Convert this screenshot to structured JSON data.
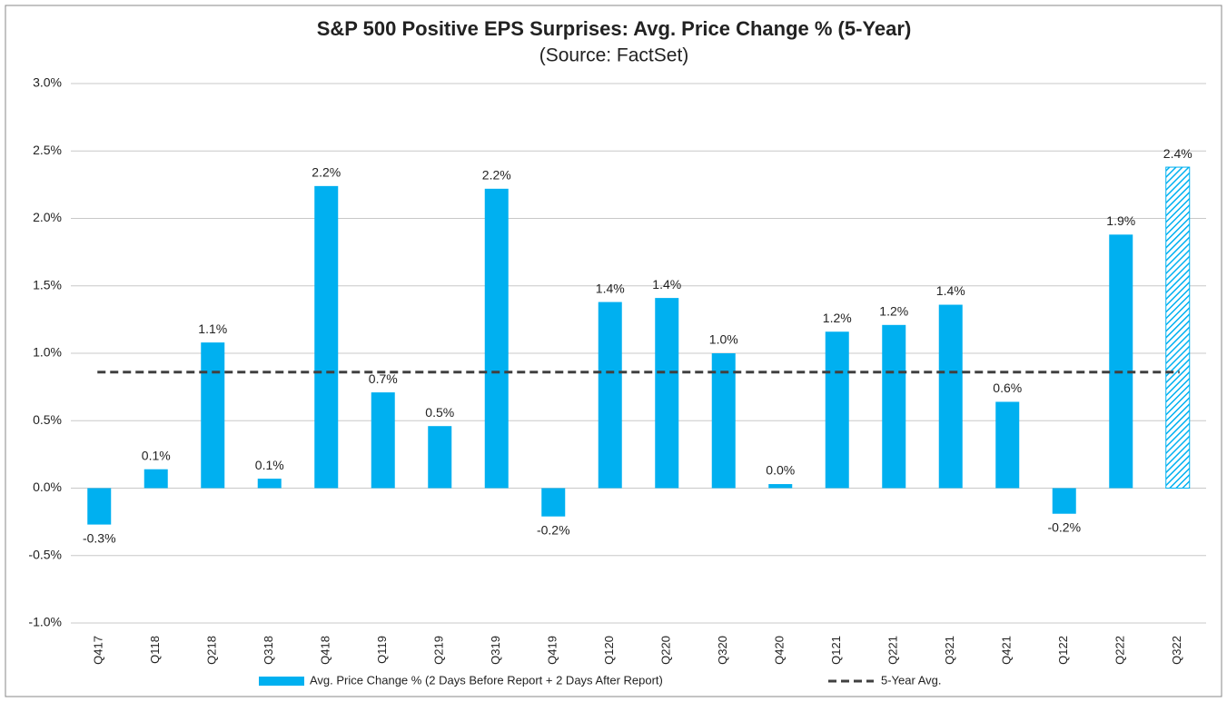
{
  "chart_data": {
    "type": "bar",
    "title": "S&P 500 Positive EPS Surprises: Avg. Price Change % (5-Year)",
    "subtitle": "(Source: FactSet)",
    "categories": [
      "Q417",
      "Q118",
      "Q218",
      "Q318",
      "Q418",
      "Q119",
      "Q219",
      "Q319",
      "Q419",
      "Q120",
      "Q220",
      "Q320",
      "Q420",
      "Q121",
      "Q221",
      "Q321",
      "Q421",
      "Q122",
      "Q222",
      "Q322"
    ],
    "series": [
      {
        "name": "Avg. Price Change % (2 Days Before Report + 2 Days After Report)",
        "color": "#00b0f0",
        "values": [
          -0.27,
          0.14,
          1.08,
          0.07,
          2.24,
          0.71,
          0.46,
          2.22,
          -0.21,
          1.38,
          1.41,
          1.0,
          0.03,
          1.16,
          1.21,
          1.36,
          0.64,
          -0.19,
          1.88,
          2.38
        ],
        "value_labels": [
          "-0.3%",
          "0.1%",
          "1.1%",
          "0.1%",
          "2.2%",
          "0.7%",
          "0.5%",
          "2.2%",
          "-0.2%",
          "1.4%",
          "1.4%",
          "1.0%",
          "0.0%",
          "1.2%",
          "1.2%",
          "1.4%",
          "0.6%",
          "-0.2%",
          "1.9%",
          "2.4%"
        ],
        "hatched_categories": [
          "Q322"
        ]
      }
    ],
    "reference_line": {
      "name": "5-Year Avg.",
      "value": 0.86,
      "color": "#404040"
    },
    "ylim": [
      -1,
      3
    ],
    "yticks": [
      {
        "value": -1,
        "label": "-1.0%"
      },
      {
        "value": -0.5,
        "label": "-0.5%"
      },
      {
        "value": 0,
        "label": "0.0%"
      },
      {
        "value": 0.5,
        "label": "0.5%"
      },
      {
        "value": 1,
        "label": "1.0%"
      },
      {
        "value": 1.5,
        "label": "1.5%"
      },
      {
        "value": 2,
        "label": "2.0%"
      },
      {
        "value": 2.5,
        "label": "2.5%"
      },
      {
        "value": 3,
        "label": "3.0%"
      }
    ],
    "grid": true,
    "legend": "bottom"
  }
}
